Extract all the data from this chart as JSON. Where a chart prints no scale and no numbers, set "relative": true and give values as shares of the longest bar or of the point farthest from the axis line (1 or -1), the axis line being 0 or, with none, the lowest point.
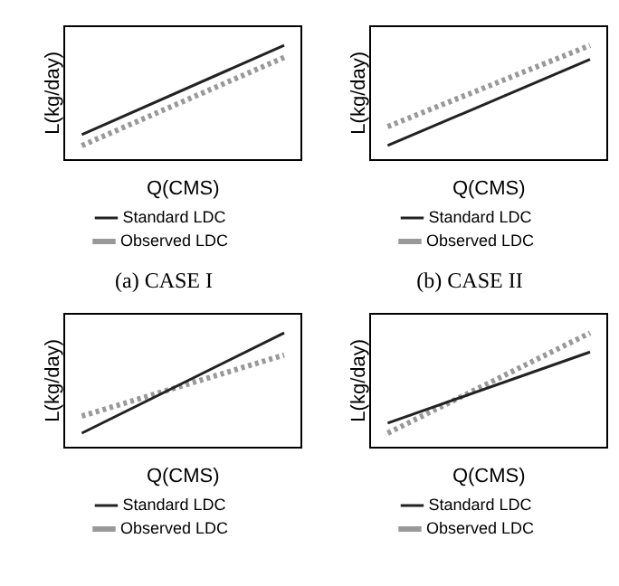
{
  "chart_data": [
    {
      "type": "line",
      "xlabel": "Q(CMS)",
      "ylabel": "L(kg/day)",
      "relative": true,
      "legend": "bottom",
      "marker": "none",
      "annotations": [
        "(a)  CASE I"
      ],
      "categories": [
        null,
        null
      ],
      "series": [
        {
          "name": "Standard LDC",
          "color": "#222222",
          "line_style": "solid",
          "values": [
            0.11,
            1
          ]
        },
        {
          "name": "Observed LDC",
          "color": "#999999",
          "line_style": "dotted",
          "values": [
            0,
            0.88
          ]
        }
      ]
    },
    {
      "type": "line",
      "xlabel": "Q(CMS)",
      "ylabel": "L(kg/day)",
      "relative": true,
      "legend": "bottom",
      "marker": "none",
      "annotations": [
        "(b)  CASE II"
      ],
      "categories": [
        null,
        null
      ],
      "series": [
        {
          "name": "Standard LDC",
          "color": "#222222",
          "line_style": "solid",
          "values": [
            0,
            0.86
          ]
        },
        {
          "name": "Observed LDC",
          "color": "#999999",
          "line_style": "dotted",
          "values": [
            0.19,
            1
          ]
        }
      ]
    },
    {
      "type": "line",
      "xlabel": "Q(CMS)",
      "ylabel": "L(kg/day)",
      "relative": true,
      "legend": "bottom",
      "marker": "none",
      "categories": [
        null,
        null
      ],
      "series": [
        {
          "name": "Standard LDC",
          "color": "#222222",
          "line_style": "solid",
          "values": [
            0,
            1
          ]
        },
        {
          "name": "Observed LDC",
          "color": "#999999",
          "line_style": "dotted",
          "values": [
            0.17,
            0.78
          ]
        }
      ]
    },
    {
      "type": "line",
      "xlabel": "Q(CMS)",
      "ylabel": "L(kg/day)",
      "relative": true,
      "legend": "bottom",
      "marker": "none",
      "categories": [
        null,
        null
      ],
      "series": [
        {
          "name": "Standard LDC",
          "color": "#222222",
          "line_style": "solid",
          "values": [
            0.1,
            0.81
          ]
        },
        {
          "name": "Observed LDC",
          "color": "#999999",
          "line_style": "dotted",
          "values": [
            0,
            1
          ]
        }
      ]
    }
  ]
}
